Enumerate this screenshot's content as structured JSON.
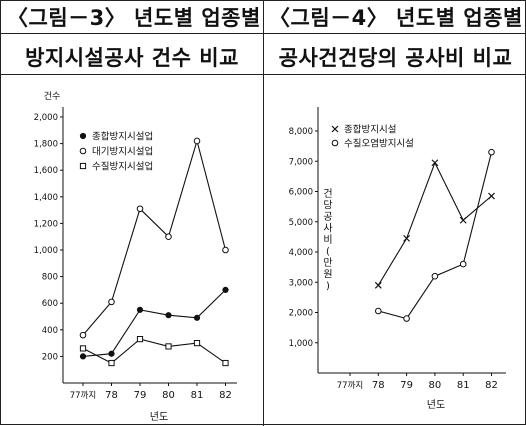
{
  "panels": [
    {
      "title_line1": "〈그림－3〉 년도별 업종별",
      "title_line2": "방지시설공사 건수 비교"
    },
    {
      "title_line1": "〈그림－4〉 년도별 업종별",
      "title_line2": "공사건건당의 공사비 비교"
    }
  ],
  "chart_data": [
    {
      "type": "line",
      "title": "〈그림－3〉 년도별 업종별 방지시설공사 건수 비교",
      "ylabel": "건수",
      "xlabel": "년도",
      "categories": [
        "77까지",
        "78",
        "79",
        "80",
        "81",
        "82"
      ],
      "ylim": [
        0,
        2000
      ],
      "yticks": [
        "200",
        "400",
        "600",
        "800",
        "1,000",
        "1,200",
        "1,400",
        "1,600",
        "1,800",
        "2,000"
      ],
      "grid": false,
      "legend_position": "top-left",
      "series": [
        {
          "name": "종합방지시설업",
          "marker": "filled-circle",
          "values": [
            200,
            220,
            550,
            510,
            490,
            700
          ]
        },
        {
          "name": "대기방지시설업",
          "marker": "open-circle",
          "values": [
            360,
            610,
            1310,
            1100,
            1820,
            1000
          ]
        },
        {
          "name": "수질방지시설업",
          "marker": "open-square",
          "values": [
            260,
            150,
            330,
            275,
            300,
            150
          ]
        }
      ]
    },
    {
      "type": "line",
      "title": "〈그림－4〉 년도별 업종별 공사건건당의 공사비 비교",
      "ylabel": "건당공사비 (만원)",
      "xlabel": "년도",
      "categories": [
        "77까지",
        "78",
        "79",
        "80",
        "81",
        "82"
      ],
      "ylim": [
        0,
        8000
      ],
      "yticks": [
        "1,000",
        "2,000",
        "3,000",
        "4,000",
        "5,000",
        "6,000",
        "7,000",
        "8,000"
      ],
      "grid": false,
      "legend_position": "top-left",
      "series": [
        {
          "name": "종합방지시설",
          "marker": "cross",
          "values": [
            null,
            2900,
            4450,
            6950,
            5050,
            5850
          ]
        },
        {
          "name": "수질오염방지시설",
          "marker": "open-circle",
          "values": [
            null,
            2050,
            1800,
            3200,
            3600,
            7300
          ]
        }
      ]
    }
  ]
}
